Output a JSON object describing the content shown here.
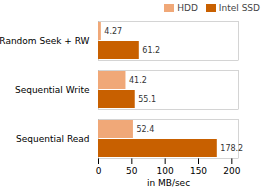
{
  "chart_data": {
    "type": "bar",
    "orientation": "horizontal",
    "categories": [
      "Sequential Read",
      "Sequential Write",
      "Random Seek + RW"
    ],
    "series": [
      {
        "name": "HDD",
        "color": "#F0A878",
        "values": [
          52.4,
          41.2,
          4.27
        ]
      },
      {
        "name": "Intel SSD",
        "color": "#C86000",
        "values": [
          178.2,
          55.1,
          61.2
        ]
      }
    ],
    "xlabel": "in MB/sec",
    "xlim": [
      0,
      210
    ],
    "xticks": [
      0,
      50,
      100,
      150,
      200
    ],
    "data_labels": true,
    "grid": false,
    "legend": "upper right"
  }
}
